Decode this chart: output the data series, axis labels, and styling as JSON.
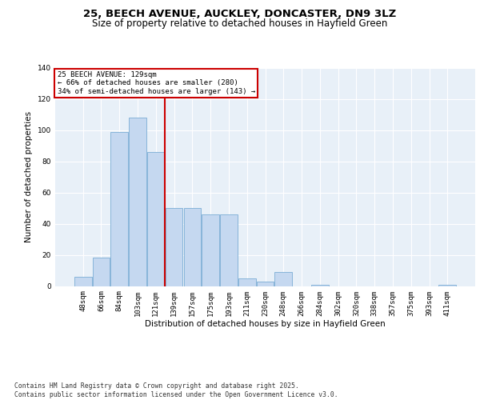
{
  "title_line1": "25, BEECH AVENUE, AUCKLEY, DONCASTER, DN9 3LZ",
  "title_line2": "Size of property relative to detached houses in Hayfield Green",
  "xlabel": "Distribution of detached houses by size in Hayfield Green",
  "ylabel": "Number of detached properties",
  "categories": [
    "48sqm",
    "66sqm",
    "84sqm",
    "103sqm",
    "121sqm",
    "139sqm",
    "157sqm",
    "175sqm",
    "193sqm",
    "211sqm",
    "230sqm",
    "248sqm",
    "266sqm",
    "284sqm",
    "302sqm",
    "320sqm",
    "338sqm",
    "357sqm",
    "375sqm",
    "393sqm",
    "411sqm"
  ],
  "values": [
    6,
    18,
    99,
    108,
    86,
    50,
    50,
    46,
    46,
    5,
    3,
    9,
    0,
    1,
    0,
    0,
    0,
    0,
    0,
    0,
    1
  ],
  "bar_color": "#c5d8f0",
  "bar_edge_color": "#7aadd4",
  "vline_color": "#cc0000",
  "annotation_text": "25 BEECH AVENUE: 129sqm\n← 66% of detached houses are smaller (280)\n34% of semi-detached houses are larger (143) →",
  "annotation_box_color": "#cc0000",
  "ylim": [
    0,
    140
  ],
  "yticks": [
    0,
    20,
    40,
    60,
    80,
    100,
    120,
    140
  ],
  "background_color": "#e8f0f8",
  "footer_text": "Contains HM Land Registry data © Crown copyright and database right 2025.\nContains public sector information licensed under the Open Government Licence v3.0.",
  "title_fontsize": 9.5,
  "subtitle_fontsize": 8.5,
  "axis_label_fontsize": 7.5,
  "tick_fontsize": 6.5,
  "footer_fontsize": 5.8
}
